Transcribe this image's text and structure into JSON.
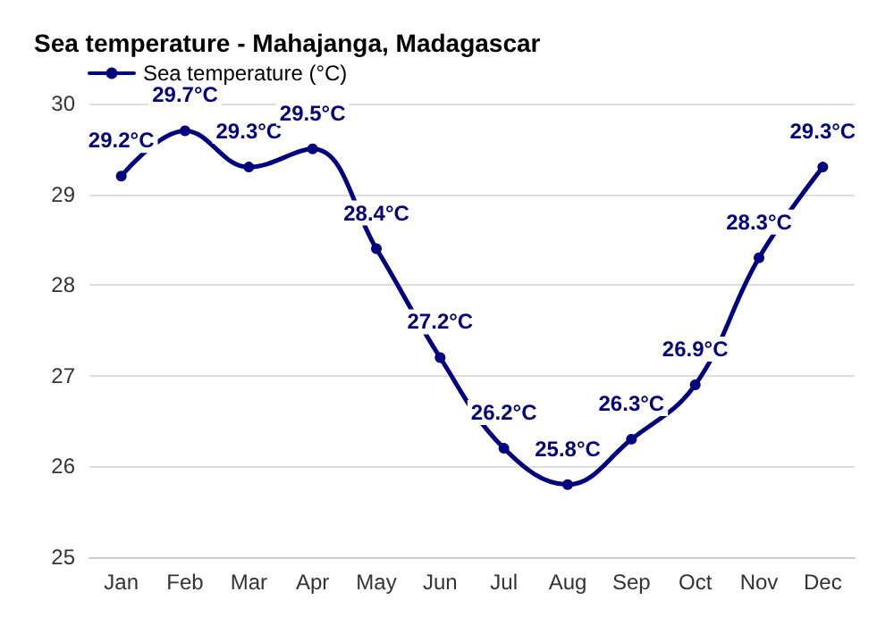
{
  "chart_data": {
    "type": "line",
    "title": "Sea temperature - Mahajanga, Madagascar",
    "categories": [
      "Jan",
      "Feb",
      "Mar",
      "Apr",
      "May",
      "Jun",
      "Jul",
      "Aug",
      "Sep",
      "Oct",
      "Nov",
      "Dec"
    ],
    "series": [
      {
        "name": "Sea temperature (°C)",
        "color": "#000080",
        "values": [
          29.2,
          29.7,
          29.3,
          29.5,
          28.4,
          27.2,
          26.2,
          25.8,
          26.3,
          26.9,
          28.3,
          29.3
        ],
        "value_labels": [
          "29.2°C",
          "29.7°C",
          "29.3°C",
          "29.5°C",
          "28.4°C",
          "27.2°C",
          "26.2°C",
          "25.8°C",
          "26.3°C",
          "26.9°C",
          "28.3°C",
          "29.3°C"
        ]
      }
    ],
    "ylim": [
      25,
      30
    ],
    "yticks": [
      25,
      26,
      27,
      28,
      29,
      30
    ],
    "grid": "y",
    "legend": "top left",
    "marker": "circle",
    "line_style": "solid"
  }
}
